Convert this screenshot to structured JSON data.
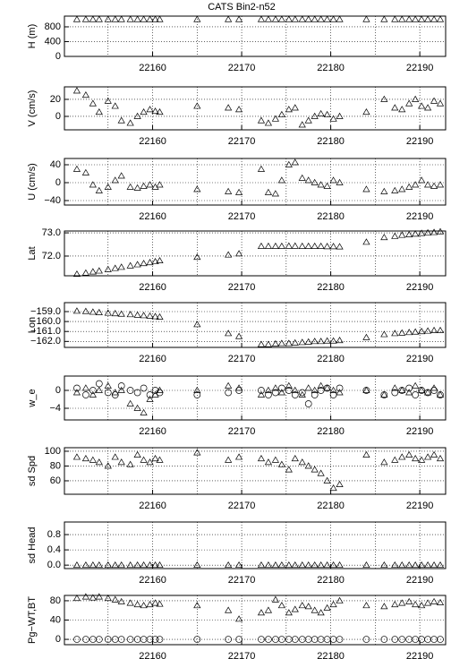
{
  "chart_data": [
    {
      "type": "scatter",
      "title": "CATS Bin2-n52",
      "ylabel": "H (m)",
      "x": [
        22151.5,
        22152.5,
        22153.3,
        22154,
        22155,
        22155.8,
        22156.5,
        22157.5,
        22158.3,
        22159,
        22159.7,
        22160.3,
        22160.8,
        22165,
        22168.5,
        22169.7,
        22172.2,
        22173,
        22173.8,
        22174.5,
        22175.3,
        22176,
        22176.8,
        22177.5,
        22178.2,
        22178.9,
        22179.6,
        22180.3,
        22181,
        22184,
        22186,
        22187.2,
        22188,
        22188.8,
        22189.5,
        22190.2,
        22190.9,
        22191.6,
        22192.3
      ],
      "series": [
        {
          "marker": "triangle",
          "values": [
            1000,
            1000,
            1000,
            1000,
            1000,
            1000,
            1000,
            1000,
            1000,
            1000,
            1000,
            1000,
            1000,
            1000,
            1000,
            1000,
            1000,
            1000,
            1000,
            1000,
            1000,
            1000,
            1000,
            1000,
            1000,
            1000,
            1000,
            1000,
            1000,
            1000,
            1000,
            1000,
            1000,
            1000,
            1000,
            1000,
            1000,
            1000,
            1000
          ]
        }
      ],
      "xlim": [
        22150.1,
        22192.9
      ],
      "xticks": [
        22160,
        22170,
        22180,
        22190
      ],
      "xgrid": [
        22155,
        22165,
        22175,
        22185
      ],
      "ylim": [
        0,
        1090
      ],
      "yticks": [
        0,
        400,
        800
      ],
      "grid": true
    },
    {
      "type": "scatter",
      "ylabel": "V (cm/s)",
      "x": [
        22151.5,
        22152.5,
        22153.3,
        22154,
        22155,
        22155.8,
        22156.5,
        22157.5,
        22158.3,
        22159,
        22159.7,
        22160.3,
        22160.8,
        22165,
        22168.5,
        22169.7,
        22172.2,
        22173,
        22173.8,
        22174.5,
        22175.3,
        22176,
        22176.8,
        22177.5,
        22178.2,
        22178.9,
        22179.6,
        22180.3,
        22181,
        22184,
        22186,
        22187.2,
        22188,
        22188.8,
        22189.5,
        22190.2,
        22190.9,
        22191.6,
        22192.3
      ],
      "series": [
        {
          "marker": "triangle",
          "values": [
            30,
            25,
            15,
            5,
            18,
            12,
            -5,
            -8,
            0,
            5,
            8,
            6,
            5,
            12,
            10,
            8,
            -5,
            -8,
            -3,
            2,
            8,
            10,
            -10,
            -5,
            0,
            3,
            2,
            -3,
            0,
            5,
            20,
            10,
            8,
            15,
            20,
            12,
            10,
            18,
            15
          ]
        }
      ],
      "xlim": [
        22150.1,
        22192.9
      ],
      "xticks": [
        22160,
        22170,
        22180,
        22190
      ],
      "xgrid": [
        22155,
        22165,
        22175,
        22185
      ],
      "ylim": [
        -15.8,
        34.7
      ],
      "yticks": [
        0,
        20
      ],
      "grid": true
    },
    {
      "type": "scatter",
      "ylabel": "U (cm/s)",
      "x": [
        22151.5,
        22152.5,
        22153.3,
        22154,
        22155,
        22155.8,
        22156.5,
        22157.5,
        22158.3,
        22159,
        22159.7,
        22160.3,
        22160.8,
        22165,
        22168.5,
        22169.7,
        22172.2,
        22173,
        22173.8,
        22174.5,
        22175.3,
        22176,
        22176.8,
        22177.5,
        22178.2,
        22178.9,
        22179.6,
        22180.3,
        22181,
        22184,
        22186,
        22187.2,
        22188,
        22188.8,
        22189.5,
        22190.2,
        22190.9,
        22191.6,
        22192.3
      ],
      "series": [
        {
          "marker": "triangle",
          "values": [
            30,
            22,
            -5,
            -18,
            -10,
            5,
            15,
            -10,
            -12,
            -8,
            -5,
            -10,
            -5,
            -15,
            -20,
            -22,
            30,
            -22,
            -25,
            5,
            40,
            45,
            10,
            5,
            0,
            -5,
            -8,
            5,
            0,
            -15,
            -20,
            -18,
            -15,
            -10,
            -5,
            5,
            -5,
            -8,
            -5
          ]
        }
      ],
      "xlim": [
        22150.1,
        22192.9
      ],
      "xticks": [
        22160,
        22170,
        22180,
        22190
      ],
      "xgrid": [
        22155,
        22165,
        22175,
        22185
      ],
      "ylim": [
        -50,
        54
      ],
      "yticks": [
        {
          "value": -40,
          "label": "−40"
        },
        0,
        40
      ],
      "grid": true
    },
    {
      "type": "scatter",
      "ylabel": "Lat",
      "x": [
        22151.5,
        22152.5,
        22153.3,
        22154,
        22155,
        22155.8,
        22156.5,
        22157.5,
        22158.3,
        22159,
        22159.7,
        22160.3,
        22160.8,
        22165,
        22168.5,
        22169.7,
        22172.2,
        22173,
        22173.8,
        22174.5,
        22175.3,
        22176,
        22176.8,
        22177.5,
        22178.2,
        22178.9,
        22179.6,
        22180.3,
        22181,
        22184,
        22186,
        22187.2,
        22188,
        22188.8,
        22189.5,
        22190.2,
        22190.9,
        22191.6,
        22192.3
      ],
      "series": [
        {
          "marker": "triangle",
          "values": [
            71.22,
            71.27,
            71.32,
            71.36,
            71.42,
            71.47,
            71.52,
            71.58,
            71.63,
            71.68,
            71.72,
            71.76,
            71.8,
            71.95,
            72.05,
            72.1,
            72.42,
            72.42,
            72.42,
            72.42,
            72.43,
            72.43,
            72.42,
            72.42,
            72.42,
            72.42,
            72.41,
            72.41,
            72.4,
            72.6,
            72.8,
            72.85,
            72.9,
            72.92,
            72.95,
            72.98,
            73.0,
            73.02,
            73.05
          ]
        }
      ],
      "xlim": [
        22150.1,
        22192.9
      ],
      "xticks": [
        22160,
        22170,
        22180,
        22190
      ],
      "xgrid": [
        22155,
        22165,
        22175,
        22185
      ],
      "ylim": [
        71.15,
        73.08
      ],
      "yticks": [
        {
          "value": 72,
          "label": "72.0"
        },
        {
          "value": 73,
          "label": "73.0"
        }
      ],
      "grid": true
    },
    {
      "type": "scatter",
      "ylabel": "Lon",
      "x": [
        22151.5,
        22152.5,
        22153.3,
        22154,
        22155,
        22155.8,
        22156.5,
        22157.5,
        22158.3,
        22159,
        22159.7,
        22160.3,
        22160.8,
        22165,
        22168.5,
        22169.7,
        22172.2,
        22173,
        22173.8,
        22174.5,
        22175.3,
        22176,
        22176.8,
        22177.5,
        22178.2,
        22178.9,
        22179.6,
        22180.3,
        22181,
        22184,
        22186,
        22187.2,
        22188,
        22188.8,
        22189.5,
        22190.2,
        22190.9,
        22191.6,
        22192.3
      ],
      "series": [
        {
          "marker": "triangle",
          "values": [
            -158.95,
            -158.98,
            -159.05,
            -159.1,
            -159.15,
            -159.2,
            -159.25,
            -159.3,
            -159.35,
            -159.4,
            -159.45,
            -159.5,
            -159.55,
            -160.3,
            -161.2,
            -161.5,
            -162.3,
            -162.3,
            -162.25,
            -162.2,
            -162.2,
            -162.15,
            -162.1,
            -162.05,
            -162.0,
            -162.0,
            -161.95,
            -161.95,
            -161.9,
            -161.6,
            -161.3,
            -161.2,
            -161.15,
            -161.1,
            -161.05,
            -161.0,
            -160.95,
            -160.9,
            -160.9
          ]
        }
      ],
      "xlim": [
        22150.1,
        22192.9
      ],
      "xticks": [
        22160,
        22170,
        22180,
        22190
      ],
      "xgrid": [
        22155,
        22165,
        22175,
        22185
      ],
      "ylim": [
        -162.6,
        -158.1
      ],
      "yticks": [
        {
          "value": -162,
          "label": "−162.0"
        },
        {
          "value": -161,
          "label": "−161.0"
        },
        {
          "value": -160,
          "label": "−160.0"
        },
        {
          "value": -159,
          "label": "−159.0"
        }
      ],
      "grid": true
    },
    {
      "type": "scatter",
      "ylabel": "w_e",
      "x": [
        22151.5,
        22152.5,
        22153.3,
        22154,
        22155,
        22155.8,
        22156.5,
        22157.5,
        22158.3,
        22159,
        22159.7,
        22160.3,
        22160.8,
        22165,
        22168.5,
        22169.7,
        22172.2,
        22173,
        22173.8,
        22174.5,
        22175.3,
        22176,
        22176.8,
        22177.5,
        22178.2,
        22178.9,
        22179.6,
        22180.3,
        22181,
        22184,
        22186,
        22187.2,
        22188,
        22188.8,
        22189.5,
        22190.2,
        22190.9,
        22191.6,
        22192.3
      ],
      "series": [
        {
          "marker": "triangle",
          "values": [
            -0.5,
            0.5,
            -1,
            0,
            1,
            -0.5,
            0,
            -3,
            -4,
            -5,
            -2,
            -1,
            0,
            0,
            1,
            0.5,
            -1,
            0,
            0.5,
            -0.5,
            1,
            0,
            -1,
            0.5,
            0,
            1,
            0.5,
            0,
            -0.5,
            0,
            -1,
            0.5,
            0,
            -0.5,
            1,
            0,
            -0.5,
            0.5,
            -1
          ]
        },
        {
          "marker": "circle",
          "values": [
            0.5,
            -1,
            0,
            1.5,
            -0.5,
            -1,
            1,
            0,
            -0.5,
            0.5,
            -1,
            0,
            -0.5,
            -1,
            -0.5,
            0,
            0,
            -1,
            -0.5,
            0.5,
            0,
            -1,
            -0.5,
            -3,
            -1,
            0,
            0.5,
            -1,
            0.5,
            0,
            -1,
            -0.5,
            0,
            0.5,
            -1,
            0,
            -0.5,
            0,
            -1
          ]
        }
      ],
      "xlim": [
        22150.1,
        22192.9
      ],
      "xticks": [
        22160,
        22170,
        22180,
        22190
      ],
      "xgrid": [
        22155,
        22165,
        22175,
        22185
      ],
      "ylim": [
        -6.6,
        3.2
      ],
      "yticks": [
        {
          "value": -4,
          "label": "−4"
        },
        0
      ],
      "grid": true
    },
    {
      "type": "scatter",
      "ylabel": "sd Spd",
      "x": [
        22151.5,
        22152.5,
        22153.3,
        22154,
        22155,
        22155.8,
        22156.5,
        22157.5,
        22158.3,
        22159,
        22159.7,
        22160.3,
        22160.8,
        22165,
        22168.5,
        22169.7,
        22172.2,
        22173,
        22173.8,
        22174.5,
        22175.3,
        22176,
        22176.8,
        22177.5,
        22178.2,
        22178.9,
        22179.6,
        22180.3,
        22181,
        22184,
        22186,
        22187.2,
        22188,
        22188.8,
        22189.5,
        22190.2,
        22190.9,
        22191.6,
        22192.3
      ],
      "series": [
        {
          "marker": "triangle",
          "values": [
            92,
            90,
            88,
            85,
            80,
            92,
            85,
            82,
            95,
            88,
            85,
            90,
            88,
            98,
            88,
            92,
            90,
            85,
            88,
            82,
            75,
            90,
            85,
            80,
            75,
            70,
            60,
            50,
            55,
            95,
            85,
            88,
            92,
            95,
            90,
            88,
            92,
            95,
            90
          ]
        }
      ],
      "xlim": [
        22150.1,
        22192.9
      ],
      "xticks": [
        22160,
        22170,
        22180,
        22190
      ],
      "xgrid": [
        22155,
        22165,
        22175,
        22185
      ],
      "ylim": [
        41.8,
        104.8
      ],
      "yticks": [
        60,
        80,
        100
      ],
      "grid": true
    },
    {
      "type": "scatter",
      "ylabel": "sd Head",
      "x": [
        22151.5,
        22152.5,
        22153.3,
        22154,
        22155,
        22155.8,
        22156.5,
        22157.5,
        22158.3,
        22159,
        22159.7,
        22160.3,
        22160.8,
        22165,
        22168.5,
        22169.7,
        22172.2,
        22173,
        22173.8,
        22174.5,
        22175.3,
        22176,
        22176.8,
        22177.5,
        22178.2,
        22178.9,
        22179.6,
        22180.3,
        22181,
        22184,
        22186,
        22187.2,
        22188,
        22188.8,
        22189.5,
        22190.2,
        22190.9,
        22191.6,
        22192.3
      ],
      "series": [
        {
          "marker": "triangle",
          "values": [
            0,
            0,
            0,
            0,
            0,
            0,
            0,
            0,
            0,
            0,
            0,
            0,
            0,
            0,
            0,
            0,
            0,
            0,
            0,
            0,
            0,
            0,
            0,
            0,
            0,
            0,
            0,
            0,
            0,
            0,
            0,
            0,
            0,
            0,
            0,
            0,
            0,
            0,
            0
          ]
        }
      ],
      "xlim": [
        22150.1,
        22192.9
      ],
      "xticks": [
        22160,
        22170,
        22180,
        22190
      ],
      "xgrid": [
        22155,
        22165,
        22175,
        22185
      ],
      "ylim": [
        -0.09,
        1.13
      ],
      "yticks": [
        {
          "value": 0,
          "label": "0.0"
        },
        0.4,
        0.8
      ],
      "grid": true
    },
    {
      "type": "scatter",
      "ylabel": "Pg−WT,BT",
      "x": [
        22151.5,
        22152.5,
        22153.3,
        22154,
        22155,
        22155.8,
        22156.5,
        22157.5,
        22158.3,
        22159,
        22159.7,
        22160.3,
        22160.8,
        22165,
        22168.5,
        22169.7,
        22172.2,
        22173,
        22173.8,
        22174.5,
        22175.3,
        22176,
        22176.8,
        22177.5,
        22178.2,
        22178.9,
        22179.6,
        22180.3,
        22181,
        22184,
        22186,
        22187.2,
        22188,
        22188.8,
        22189.5,
        22190.2,
        22190.9,
        22191.6,
        22192.3
      ],
      "series": [
        {
          "marker": "triangle",
          "values": [
            85,
            88,
            86,
            88,
            85,
            82,
            78,
            75,
            72,
            70,
            72,
            75,
            73,
            70,
            60,
            42,
            55,
            60,
            82,
            70,
            55,
            62,
            70,
            68,
            60,
            55,
            65,
            72,
            80,
            70,
            68,
            72,
            75,
            78,
            72,
            70,
            75,
            78,
            76
          ]
        },
        {
          "marker": "circle",
          "values": [
            0,
            0,
            0,
            0,
            0,
            0,
            0,
            0,
            0,
            0,
            0,
            0,
            0,
            0,
            0,
            0,
            0,
            0,
            0,
            0,
            0,
            0,
            0,
            0,
            0,
            0,
            0,
            0,
            0,
            0,
            0,
            0,
            0,
            0,
            0,
            0,
            0,
            0,
            0
          ]
        }
      ],
      "xlim": [
        22150.1,
        22192.9
      ],
      "xticks": [
        22160,
        22170,
        22180,
        22190
      ],
      "xgrid": [
        22155,
        22165,
        22175,
        22185
      ],
      "ylim": [
        -11,
        91
      ],
      "yticks": [
        0,
        40,
        80
      ],
      "grid": true
    }
  ]
}
